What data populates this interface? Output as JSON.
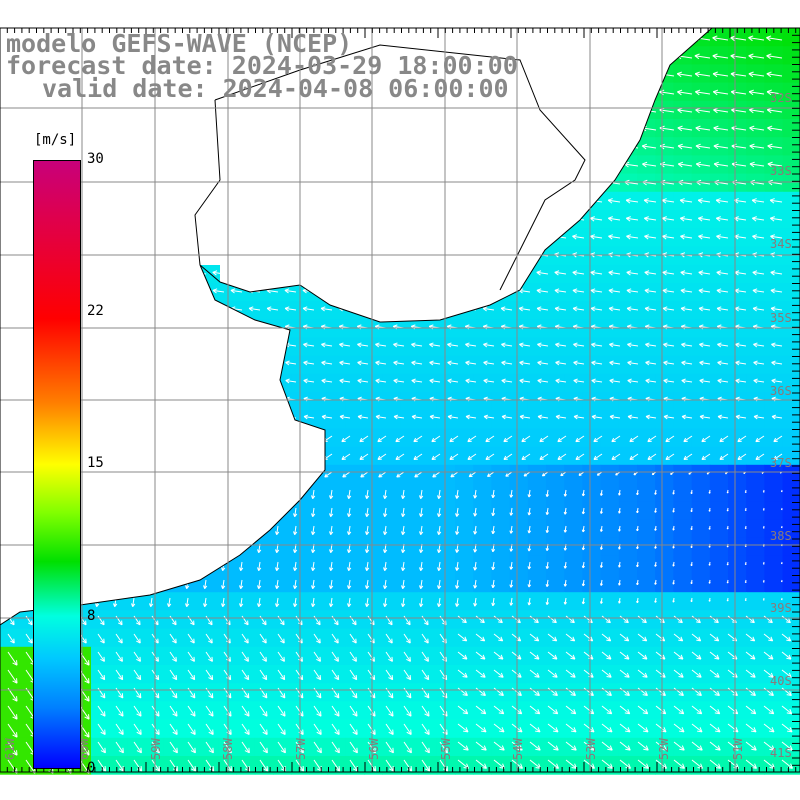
{
  "title": {
    "line1": "modelo GEFS-WAVE (NCEP)",
    "line2": "forecast date: 2024-03-29 18:00:00",
    "line3": "valid date: 2024-04-08 06:00:00"
  },
  "colorbar": {
    "unit": "[m/s]",
    "ticks": [
      "30",
      "22",
      "15",
      "8",
      "0"
    ],
    "tick_values": [
      30,
      22,
      15,
      8,
      0
    ],
    "range": [
      0,
      30
    ]
  },
  "lat_labels": [
    "32S",
    "33S",
    "34S",
    "35S",
    "36S",
    "37S",
    "38S",
    "39S",
    "40S",
    "41S"
  ],
  "lon_labels": [
    "61W",
    "60W",
    "59W",
    "58W",
    "57W",
    "56W",
    "55W",
    "54W",
    "53W",
    "52W",
    "51W"
  ],
  "colors": {
    "land": "#ffffff",
    "grid": "#888888",
    "coast": "#000000",
    "arrow": "#ffffff"
  }
}
